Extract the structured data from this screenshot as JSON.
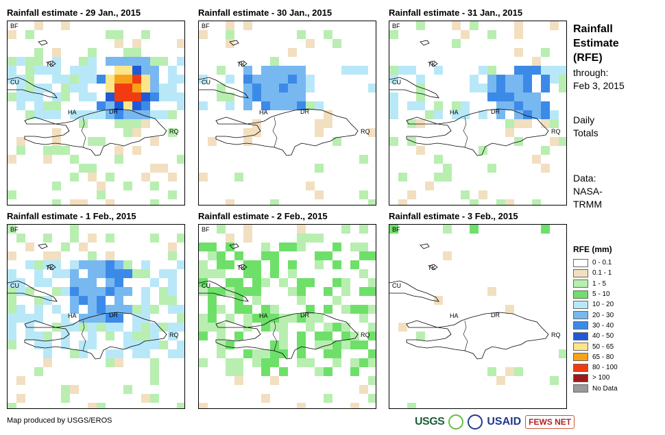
{
  "panels": [
    {
      "title": "Rainfall estimate - 29 Jan., 2015",
      "region_labels": [
        "BF",
        "TK",
        "CU",
        "HA",
        "DR",
        "RQ"
      ]
    },
    {
      "title": "Rainfall estimate - 30 Jan., 2015",
      "region_labels": [
        "BF",
        "TK",
        "CU",
        "HA",
        "DR",
        "RQ"
      ]
    },
    {
      "title": "Rainfall estimate - 31 Jan., 2015",
      "region_labels": [
        "BF",
        "TK",
        "CU",
        "HA",
        "DR",
        "RQ"
      ]
    },
    {
      "title": "Rainfall estimate - 1 Feb., 2015",
      "region_labels": [
        "BF",
        "TK",
        "CU",
        "HA",
        "DR",
        "RQ"
      ]
    },
    {
      "title": "Rainfall estimate - 2 Feb., 2015",
      "region_labels": [
        "BF",
        "TK",
        "CU",
        "HA",
        "DR",
        "RQ"
      ]
    },
    {
      "title": "Rainfall estimate - 3 Feb., 2015",
      "region_labels": [
        "BF",
        "TK",
        "CU",
        "HA",
        "DR",
        "RQ"
      ]
    }
  ],
  "side": {
    "title_lines": [
      "Rainfall",
      "Estimate",
      "(RFE)"
    ],
    "through": "through:",
    "date": "Feb 3, 2015",
    "daily": "Daily",
    "totals": "Totals",
    "data1": "Data:",
    "data2": "NASA-",
    "data3": "TRMM"
  },
  "legend": {
    "title": "RFE (mm)",
    "items": [
      {
        "label": "0 - 0.1",
        "color": "#ffffff"
      },
      {
        "label": "0.1 - 1",
        "color": "#f2dfc0"
      },
      {
        "label": "1 - 5",
        "color": "#b8eeb0"
      },
      {
        "label": "5 - 10",
        "color": "#6ee06a"
      },
      {
        "label": "10 - 20",
        "color": "#b8e8f8"
      },
      {
        "label": "20 - 30",
        "color": "#78b8f0"
      },
      {
        "label": "30 - 40",
        "color": "#3c8ae8"
      },
      {
        "label": "40 - 50",
        "color": "#1e5ad8"
      },
      {
        "label": "50 - 65",
        "color": "#fde68a"
      },
      {
        "label": "65 - 80",
        "color": "#f7a21b"
      },
      {
        "label": "80 - 100",
        "color": "#f03c10"
      },
      {
        "label": "> 100",
        "color": "#a01818"
      },
      {
        "label": "No Data",
        "color": "#9a9a9a"
      }
    ]
  },
  "credit": "Map produced by USGS/EROS",
  "logos": {
    "usgs": "USGS",
    "usaid": "USAID",
    "fews": "FEWS NET"
  }
}
